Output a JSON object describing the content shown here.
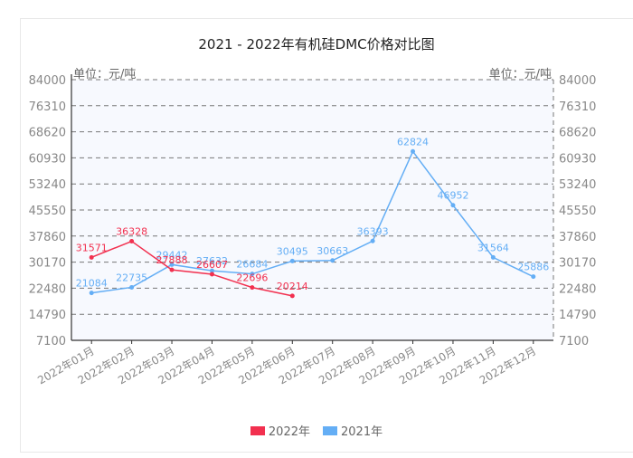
{
  "title": "2021 - 2022年有机硅DMC价格对比图",
  "unit_left": "单位：元/吨",
  "unit_right": "单位：元/吨",
  "legend": [
    {
      "label": "2022年",
      "color": "#f2304f"
    },
    {
      "label": "2021年",
      "color": "#64aef5"
    }
  ],
  "chart_data": {
    "type": "line",
    "title": "2021 - 2022年有机硅DMC价格对比图",
    "xlabel": "",
    "ylabel": "单位：元/吨",
    "ylim": [
      7100,
      84000
    ],
    "yticks": [
      84000,
      76310,
      68620,
      60930,
      53240,
      45550,
      37860,
      30170,
      22480,
      14790,
      7100
    ],
    "grid": true,
    "legend_position": "bottom",
    "categories": [
      "2022年01月",
      "2022年02月",
      "2022年03月",
      "2022年04月",
      "2022年05月",
      "2022年06月",
      "2022年07月",
      "2022年08月",
      "2022年09月",
      "2022年10月",
      "2022年11月",
      "2022年12月"
    ],
    "series": [
      {
        "name": "2022年",
        "color": "#f2304f",
        "values": [
          31571,
          36328,
          27888,
          26607,
          22696,
          20214,
          null,
          null,
          null,
          null,
          null,
          null
        ]
      },
      {
        "name": "2021年",
        "color": "#64aef5",
        "values": [
          21084,
          22735,
          29442,
          27632,
          26684,
          30495,
          30663,
          36393,
          62824,
          46952,
          31564,
          25886
        ]
      }
    ]
  }
}
